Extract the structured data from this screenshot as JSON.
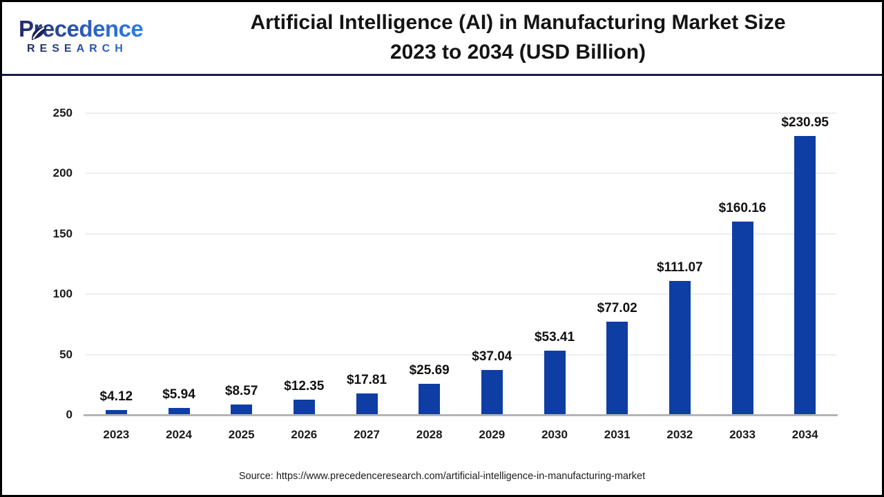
{
  "logo": {
    "name": "Precedence",
    "sub": "RESEARCH",
    "gradient_start": "#222a66",
    "gradient_end": "#2e7ce4"
  },
  "header": {
    "title_line1": "Artificial Intelligence (AI) in Manufacturing Market Size",
    "title_line2": "2023 to 2034 (USD Billion)"
  },
  "chart_data": {
    "type": "bar",
    "title": "Artificial Intelligence (AI) in Manufacturing Market Size 2023 to 2034 (USD Billion)",
    "unit": "USD Billion",
    "categories": [
      "2023",
      "2024",
      "2025",
      "2026",
      "2027",
      "2028",
      "2029",
      "2030",
      "2031",
      "2032",
      "2033",
      "2034"
    ],
    "values": [
      4.12,
      5.94,
      8.57,
      12.35,
      17.81,
      25.69,
      37.04,
      53.41,
      77.02,
      111.07,
      160.16,
      230.95
    ],
    "value_labels": [
      "$4.12",
      "$5.94",
      "$8.57",
      "$12.35",
      "$17.81",
      "$25.69",
      "$37.04",
      "$53.41",
      "$77.02",
      "$111.07",
      "$160.16",
      "$230.95"
    ],
    "xlabel": "",
    "ylabel": "",
    "ylim": [
      0,
      250
    ],
    "yticks": [
      0,
      50,
      100,
      150,
      200,
      250
    ],
    "grid": "horizontal",
    "legend": "none",
    "bar_color": "#0e3da3",
    "gridline_color": "#eeeeee",
    "baseline_color": "#b5b5b5"
  },
  "footer": {
    "source": "Source: https://www.precedenceresearch.com/artificial-intelligence-in-manufacturing-market"
  }
}
